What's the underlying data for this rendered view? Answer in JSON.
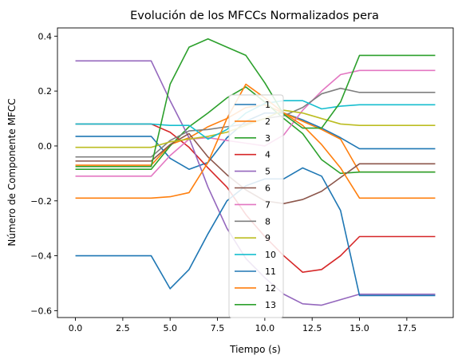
{
  "chart_data": {
    "type": "line",
    "title": "Evolución de los MFCCs Normalizados pera",
    "xlabel": "Tiempo (s)",
    "ylabel": "Número de Componente MFCC",
    "xlim": [
      -0.95,
      19.95
    ],
    "ylim": [
      -0.625,
      0.43
    ],
    "xticks": [
      0.0,
      2.5,
      5.0,
      7.5,
      10.0,
      12.5,
      15.0,
      17.5
    ],
    "xtick_labels": [
      "0.0",
      "2.5",
      "5.0",
      "7.5",
      "10.0",
      "12.5",
      "15.0",
      "17.5"
    ],
    "yticks": [
      -0.6,
      -0.4,
      -0.2,
      0.0,
      0.2,
      0.4
    ],
    "ytick_labels": [
      "−0.6",
      "−0.4",
      "−0.2",
      "0.0",
      "0.2",
      "0.4"
    ],
    "grid": false,
    "legend_position": "center",
    "x": [
      0,
      1,
      2,
      3,
      4,
      5,
      6,
      7,
      8,
      9,
      10,
      11,
      12,
      13,
      14,
      15,
      16,
      17,
      18,
      19
    ],
    "series": [
      {
        "name": "1",
        "color": "#1f77b4",
        "values": [
          0.035,
          0.035,
          0.035,
          0.035,
          0.035,
          -0.045,
          -0.085,
          -0.06,
          0.03,
          0.09,
          0.12,
          0.12,
          0.095,
          0.065,
          0.03,
          -0.01,
          -0.01,
          -0.01,
          -0.01,
          -0.01
        ]
      },
      {
        "name": "2",
        "color": "#ff7f0e",
        "values": [
          -0.07,
          -0.07,
          -0.07,
          -0.07,
          -0.07,
          0.005,
          0.03,
          0.07,
          0.1,
          0.14,
          0.15,
          0.12,
          0.09,
          0.06,
          0.025,
          -0.095,
          -0.095,
          -0.095,
          -0.095,
          -0.095
        ]
      },
      {
        "name": "3",
        "color": "#2ca02c",
        "values": [
          -0.085,
          -0.085,
          -0.085,
          -0.085,
          -0.085,
          0.0,
          0.07,
          0.12,
          0.175,
          0.215,
          0.16,
          0.1,
          0.045,
          -0.05,
          -0.1,
          -0.095,
          -0.095,
          -0.095,
          -0.095,
          -0.095
        ]
      },
      {
        "name": "4",
        "color": "#d62728",
        "values": [
          0.08,
          0.08,
          0.08,
          0.08,
          0.08,
          0.05,
          -0.005,
          -0.08,
          -0.15,
          -0.25,
          -0.33,
          -0.4,
          -0.46,
          -0.45,
          -0.4,
          -0.33,
          -0.33,
          -0.33,
          -0.33,
          -0.33
        ]
      },
      {
        "name": "5",
        "color": "#9467bd",
        "values": [
          0.31,
          0.31,
          0.31,
          0.31,
          0.31,
          0.165,
          0.03,
          -0.15,
          -0.3,
          -0.41,
          -0.48,
          -0.54,
          -0.575,
          -0.58,
          -0.56,
          -0.54,
          -0.54,
          -0.54,
          -0.54,
          -0.54
        ]
      },
      {
        "name": "6",
        "color": "#8c564b",
        "values": [
          -0.055,
          -0.055,
          -0.055,
          -0.055,
          -0.055,
          0.005,
          0.045,
          -0.04,
          -0.105,
          -0.16,
          -0.2,
          -0.21,
          -0.195,
          -0.165,
          -0.115,
          -0.065,
          -0.065,
          -0.065,
          -0.065,
          -0.065
        ]
      },
      {
        "name": "7",
        "color": "#e377c2",
        "values": [
          -0.11,
          -0.11,
          -0.11,
          -0.11,
          -0.11,
          -0.035,
          0.025,
          0.03,
          0.02,
          0.01,
          0.0,
          0.04,
          0.13,
          0.2,
          0.26,
          0.275,
          0.275,
          0.275,
          0.275,
          0.275
        ]
      },
      {
        "name": "8",
        "color": "#7f7f7f",
        "values": [
          -0.04,
          -0.04,
          -0.04,
          -0.04,
          -0.04,
          0.02,
          0.055,
          0.06,
          0.07,
          0.08,
          0.1,
          0.11,
          0.14,
          0.19,
          0.21,
          0.195,
          0.195,
          0.195,
          0.195,
          0.195
        ]
      },
      {
        "name": "9",
        "color": "#bcbd22",
        "values": [
          -0.005,
          -0.005,
          -0.005,
          -0.005,
          -0.005,
          0.015,
          0.025,
          0.035,
          0.05,
          0.075,
          0.1,
          0.13,
          0.12,
          0.1,
          0.08,
          0.075,
          0.075,
          0.075,
          0.075,
          0.075
        ]
      },
      {
        "name": "10",
        "color": "#17becf",
        "values": [
          0.08,
          0.08,
          0.08,
          0.08,
          0.08,
          0.075,
          0.075,
          0.025,
          0.06,
          0.12,
          0.155,
          0.165,
          0.165,
          0.135,
          0.145,
          0.15,
          0.15,
          0.15,
          0.15,
          0.15
        ]
      },
      {
        "name": "11",
        "color": "#1f77b4",
        "values": [
          -0.4,
          -0.4,
          -0.4,
          -0.4,
          -0.4,
          -0.52,
          -0.45,
          -0.32,
          -0.2,
          -0.145,
          -0.12,
          -0.12,
          -0.08,
          -0.11,
          -0.235,
          -0.545,
          -0.545,
          -0.545,
          -0.545,
          -0.545
        ]
      },
      {
        "name": "12",
        "color": "#ff7f0e",
        "values": [
          -0.19,
          -0.19,
          -0.19,
          -0.19,
          -0.19,
          -0.185,
          -0.17,
          -0.06,
          0.1,
          0.225,
          0.175,
          0.12,
          0.075,
          0.005,
          -0.08,
          -0.19,
          -0.19,
          -0.19,
          -0.19,
          -0.19
        ]
      },
      {
        "name": "13",
        "color": "#2ca02c",
        "values": [
          -0.075,
          -0.075,
          -0.075,
          -0.075,
          -0.075,
          0.225,
          0.36,
          0.39,
          0.36,
          0.33,
          0.23,
          0.115,
          0.065,
          0.065,
          0.16,
          0.33,
          0.33,
          0.33,
          0.33,
          0.33
        ]
      }
    ]
  }
}
